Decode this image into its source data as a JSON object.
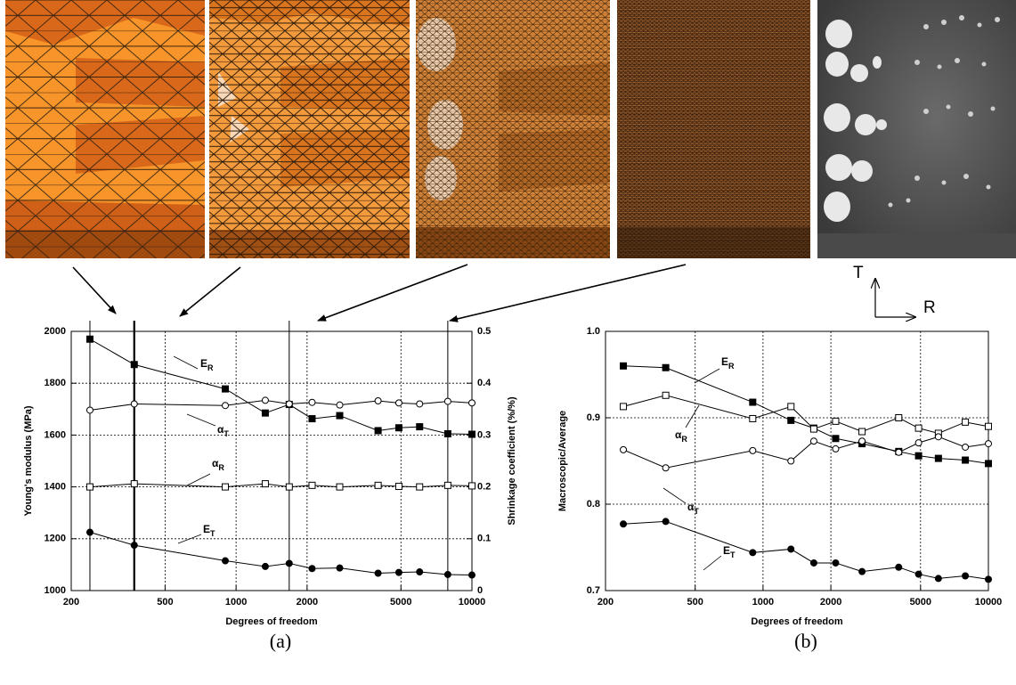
{
  "chart_data": [
    {
      "type": "line",
      "panel_label": "(a)",
      "xlabel": "Degrees of freedom",
      "ylabel": "Young's modulus (MPa)",
      "y2label": "Shrinkage coefficient (%/%)",
      "xscale": "log",
      "xlim": [
        200,
        10000
      ],
      "xticks": [
        200,
        500,
        1000,
        2000,
        5000,
        10000
      ],
      "ylim": [
        1000,
        2000
      ],
      "yticks": [
        1000,
        1200,
        1400,
        1600,
        1800,
        2000
      ],
      "y2lim": [
        0,
        0.5
      ],
      "y2ticks": [
        0,
        0.1,
        0.2,
        0.3,
        0.4,
        0.5
      ],
      "grid": true,
      "x": [
        240,
        370,
        900,
        1330,
        1680,
        2100,
        2750,
        4000,
        4900,
        6000,
        7900,
        10000
      ],
      "series": [
        {
          "name": "E",
          "subscript": "R",
          "color": "#000000",
          "marker": "square-filled",
          "values": [
            1970,
            1872,
            1778,
            1685,
            1718,
            1663,
            1675,
            1617,
            1628,
            1632,
            1605,
            1603
          ]
        },
        {
          "name": "α",
          "subscript": "T",
          "color": "#000000",
          "marker": "circle-open",
          "axis": "y2",
          "values": [
            0.348,
            0.36,
            0.357,
            0.367,
            0.36,
            0.363,
            0.358,
            0.366,
            0.362,
            0.36,
            0.365,
            0.362
          ]
        },
        {
          "name": "α",
          "subscript": "R",
          "color": "#000000",
          "marker": "square-open",
          "axis": "y2",
          "values": [
            0.2,
            0.206,
            0.2,
            0.206,
            0.2,
            0.203,
            0.2,
            0.203,
            0.201,
            0.2,
            0.203,
            0.202
          ]
        },
        {
          "name": "E",
          "subscript": "T",
          "color": "#000000",
          "marker": "circle-filled",
          "values": [
            1225,
            1175,
            1115,
            1093,
            1105,
            1085,
            1087,
            1067,
            1070,
            1072,
            1062,
            1060
          ]
        }
      ]
    },
    {
      "type": "line",
      "panel_label": "(b)",
      "xlabel": "Degrees of freedom",
      "ylabel": "Macroscopic/Average",
      "xscale": "log",
      "xlim": [
        200,
        10000
      ],
      "xticks": [
        200,
        500,
        1000,
        2000,
        5000,
        10000
      ],
      "ylim": [
        0.7,
        1.0
      ],
      "yticks": [
        0.7,
        0.8,
        0.9,
        {
          "value": 1,
          "label": "1.0"
        }
      ],
      "grid": true,
      "x": [
        240,
        370,
        900,
        1330,
        1680,
        2100,
        2750,
        4000,
        4900,
        6000,
        7900,
        10000
      ],
      "series": [
        {
          "name": "E",
          "subscript": "R",
          "color": "#000000",
          "marker": "square-filled",
          "values": [
            0.96,
            0.958,
            0.918,
            0.897,
            0.888,
            0.876,
            0.87,
            0.861,
            0.856,
            0.853,
            0.851,
            0.847
          ]
        },
        {
          "name": "α",
          "subscript": "R",
          "color": "#000000",
          "marker": "square-open",
          "values": [
            0.913,
            0.926,
            0.899,
            0.913,
            0.887,
            0.896,
            0.884,
            0.9,
            0.888,
            0.882,
            0.895,
            0.89
          ]
        },
        {
          "name": "α",
          "subscript": "T",
          "color": "#000000",
          "marker": "circle-open",
          "values": [
            0.863,
            0.842,
            0.862,
            0.85,
            0.873,
            0.864,
            0.873,
            0.86,
            0.871,
            0.878,
            0.866,
            0.87
          ]
        },
        {
          "name": "E",
          "subscript": "T",
          "color": "#000000",
          "marker": "circle-filled",
          "values": [
            0.777,
            0.78,
            0.744,
            0.748,
            0.732,
            0.732,
            0.722,
            0.727,
            0.719,
            0.714,
            0.717,
            0.713
          ]
        }
      ]
    }
  ],
  "orientation": {
    "up": "T",
    "right": "R"
  }
}
